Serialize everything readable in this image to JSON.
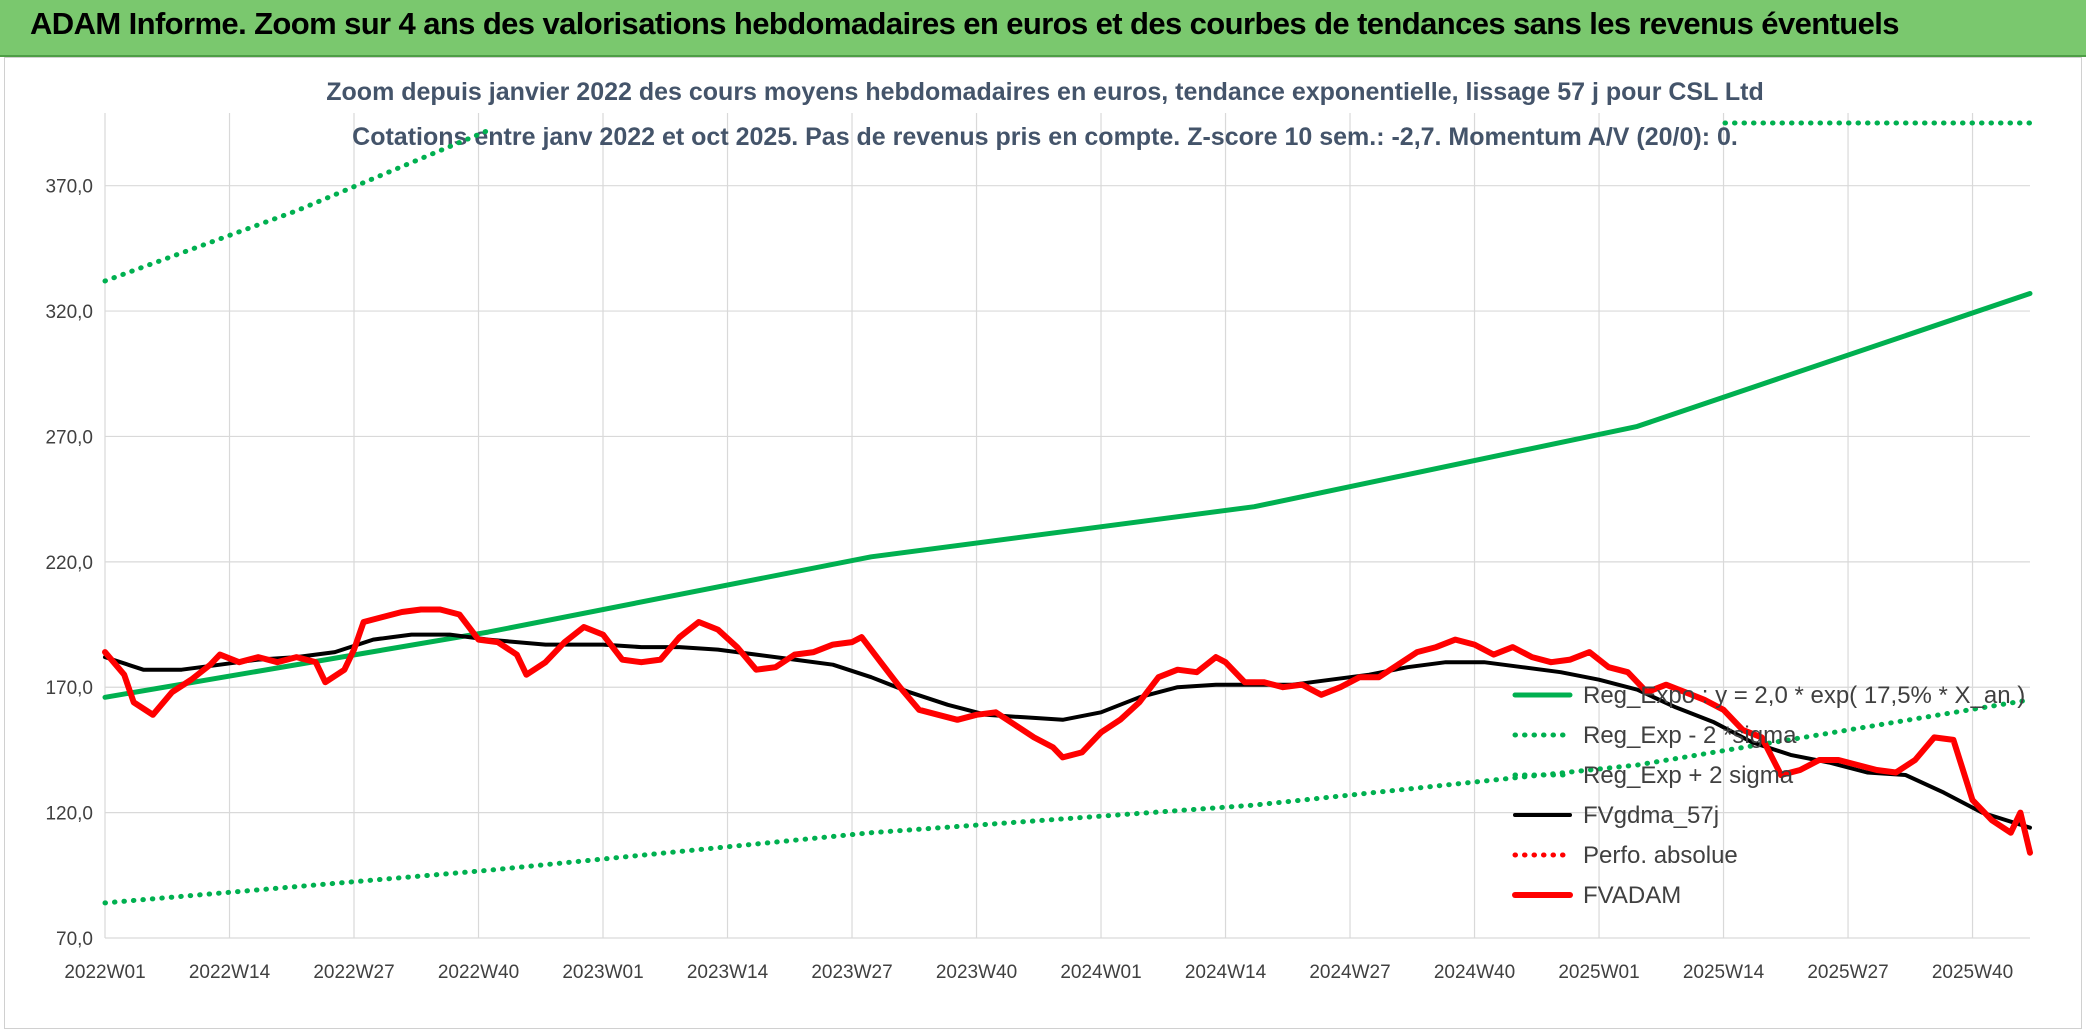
{
  "header": {
    "title": "ADAM Informe. Zoom sur 4 ans des valorisations hebdomadaires en euros et des courbes de tendances sans les revenus éventuels",
    "background": "#7ac86e"
  },
  "chart_data": {
    "type": "line",
    "title": "Zoom depuis janvier 2022 des cours moyens hebdomadaires en euros, tendance exponentielle, lissage 57 j pour CSL Ltd",
    "subtitle": "Cotations entre janv 2022 et oct 2025. Pas de revenus pris en compte. Z-score 10 sem.: -2,7. Momentum A/V (20/0): 0.",
    "ylim": [
      70,
      395
    ],
    "y_ticks": [
      "70,0",
      "120,0",
      "170,0",
      "220,0",
      "270,0",
      "320,0",
      "370,0"
    ],
    "x_ticks": [
      "2022W01",
      "2022W14",
      "2022W27",
      "2022W40",
      "2023W01",
      "2023W14",
      "2023W27",
      "2023W40",
      "2024W01",
      "2024W14",
      "2024W27",
      "2024W40",
      "2025W01",
      "2025W14",
      "2025W27",
      "2025W40"
    ],
    "x_range_weeks": [
      0,
      201
    ],
    "grid": "vertical and horizontal",
    "legend_position": "right-bottom",
    "series": [
      {
        "name": "Reg_Expo : y = 2,0 * exp( 17,5% * X_an )",
        "color": "#00b050",
        "style": "solid",
        "points": [
          [
            0,
            166
          ],
          [
            40,
            192
          ],
          [
            80,
            222
          ],
          [
            120,
            242
          ],
          [
            160,
            274
          ],
          [
            201,
            327
          ]
        ]
      },
      {
        "name": "Reg_Exp - 2 *sigma",
        "color": "#00b050",
        "style": "dotted",
        "points": [
          [
            0,
            84
          ],
          [
            40,
            97
          ],
          [
            80,
            112
          ],
          [
            120,
            123
          ],
          [
            160,
            139
          ],
          [
            201,
            165
          ]
        ]
      },
      {
        "name": "Reg_Exp + 2 sigma",
        "color": "#00b050",
        "style": "dotted",
        "points": [
          [
            0,
            332
          ],
          [
            10,
            346
          ],
          [
            20,
            360
          ],
          [
            30,
            376
          ],
          [
            40,
            392
          ]
        ]
      },
      {
        "name": "FVgdma_57j",
        "color": "#000000",
        "style": "solid",
        "points": [
          [
            0,
            182
          ],
          [
            4,
            177
          ],
          [
            8,
            177
          ],
          [
            12,
            179
          ],
          [
            16,
            181
          ],
          [
            20,
            182
          ],
          [
            24,
            184
          ],
          [
            28,
            189
          ],
          [
            32,
            191
          ],
          [
            36,
            191
          ],
          [
            40,
            189
          ],
          [
            46,
            187
          ],
          [
            52,
            187
          ],
          [
            56,
            186
          ],
          [
            60,
            186
          ],
          [
            64,
            185
          ],
          [
            68,
            183
          ],
          [
            72,
            181
          ],
          [
            76,
            179
          ],
          [
            80,
            174
          ],
          [
            84,
            168
          ],
          [
            88,
            163
          ],
          [
            92,
            159
          ],
          [
            96,
            158
          ],
          [
            100,
            157
          ],
          [
            104,
            160
          ],
          [
            108,
            166
          ],
          [
            112,
            170
          ],
          [
            116,
            171
          ],
          [
            120,
            171
          ],
          [
            124,
            171
          ],
          [
            128,
            173
          ],
          [
            132,
            175
          ],
          [
            136,
            178
          ],
          [
            140,
            180
          ],
          [
            144,
            180
          ],
          [
            148,
            178
          ],
          [
            152,
            176
          ],
          [
            156,
            173
          ],
          [
            160,
            169
          ],
          [
            164,
            162
          ],
          [
            168,
            156
          ],
          [
            172,
            148
          ],
          [
            176,
            143
          ],
          [
            180,
            140
          ],
          [
            184,
            136
          ],
          [
            188,
            135
          ],
          [
            192,
            128
          ],
          [
            196,
            120
          ],
          [
            201,
            114
          ]
        ]
      },
      {
        "name": "Perfo. absolue",
        "color": "#ff0000",
        "style": "dotted",
        "points": []
      },
      {
        "name": "FVADAM",
        "color": "#ff0000",
        "style": "solid",
        "points": [
          [
            0,
            184
          ],
          [
            2,
            175
          ],
          [
            3,
            164
          ],
          [
            5,
            159
          ],
          [
            7,
            168
          ],
          [
            9,
            173
          ],
          [
            11,
            179
          ],
          [
            12,
            183
          ],
          [
            14,
            180
          ],
          [
            16,
            182
          ],
          [
            18,
            180
          ],
          [
            20,
            182
          ],
          [
            22,
            180
          ],
          [
            23,
            172
          ],
          [
            25,
            177
          ],
          [
            26,
            185
          ],
          [
            27,
            196
          ],
          [
            29,
            198
          ],
          [
            31,
            200
          ],
          [
            33,
            201
          ],
          [
            35,
            201
          ],
          [
            37,
            199
          ],
          [
            39,
            189
          ],
          [
            41,
            188
          ],
          [
            43,
            183
          ],
          [
            44,
            175
          ],
          [
            46,
            180
          ],
          [
            48,
            188
          ],
          [
            50,
            194
          ],
          [
            52,
            191
          ],
          [
            54,
            181
          ],
          [
            56,
            180
          ],
          [
            58,
            181
          ],
          [
            60,
            190
          ],
          [
            62,
            196
          ],
          [
            64,
            193
          ],
          [
            66,
            186
          ],
          [
            68,
            177
          ],
          [
            70,
            178
          ],
          [
            72,
            183
          ],
          [
            74,
            184
          ],
          [
            76,
            187
          ],
          [
            78,
            188
          ],
          [
            79,
            190
          ],
          [
            81,
            180
          ],
          [
            83,
            170
          ],
          [
            85,
            161
          ],
          [
            87,
            159
          ],
          [
            89,
            157
          ],
          [
            91,
            159
          ],
          [
            93,
            160
          ],
          [
            95,
            155
          ],
          [
            97,
            150
          ],
          [
            99,
            146
          ],
          [
            100,
            142
          ],
          [
            102,
            144
          ],
          [
            104,
            152
          ],
          [
            106,
            157
          ],
          [
            108,
            164
          ],
          [
            110,
            174
          ],
          [
            112,
            177
          ],
          [
            114,
            176
          ],
          [
            116,
            182
          ],
          [
            117,
            180
          ],
          [
            119,
            172
          ],
          [
            121,
            172
          ],
          [
            123,
            170
          ],
          [
            125,
            171
          ],
          [
            127,
            167
          ],
          [
            129,
            170
          ],
          [
            131,
            174
          ],
          [
            133,
            174
          ],
          [
            135,
            179
          ],
          [
            137,
            184
          ],
          [
            139,
            186
          ],
          [
            141,
            189
          ],
          [
            143,
            187
          ],
          [
            145,
            183
          ],
          [
            147,
            186
          ],
          [
            149,
            182
          ],
          [
            151,
            180
          ],
          [
            153,
            181
          ],
          [
            155,
            184
          ],
          [
            157,
            178
          ],
          [
            159,
            176
          ],
          [
            161,
            168
          ],
          [
            163,
            171
          ],
          [
            165,
            168
          ],
          [
            167,
            165
          ],
          [
            169,
            161
          ],
          [
            171,
            153
          ],
          [
            173,
            150
          ],
          [
            175,
            135
          ],
          [
            177,
            137
          ],
          [
            179,
            141
          ],
          [
            181,
            141
          ],
          [
            183,
            139
          ],
          [
            185,
            137
          ],
          [
            187,
            136
          ],
          [
            189,
            141
          ],
          [
            191,
            150
          ],
          [
            193,
            149
          ],
          [
            195,
            125
          ],
          [
            197,
            117
          ],
          [
            199,
            112
          ],
          [
            200,
            120
          ],
          [
            201,
            104
          ]
        ]
      }
    ]
  }
}
